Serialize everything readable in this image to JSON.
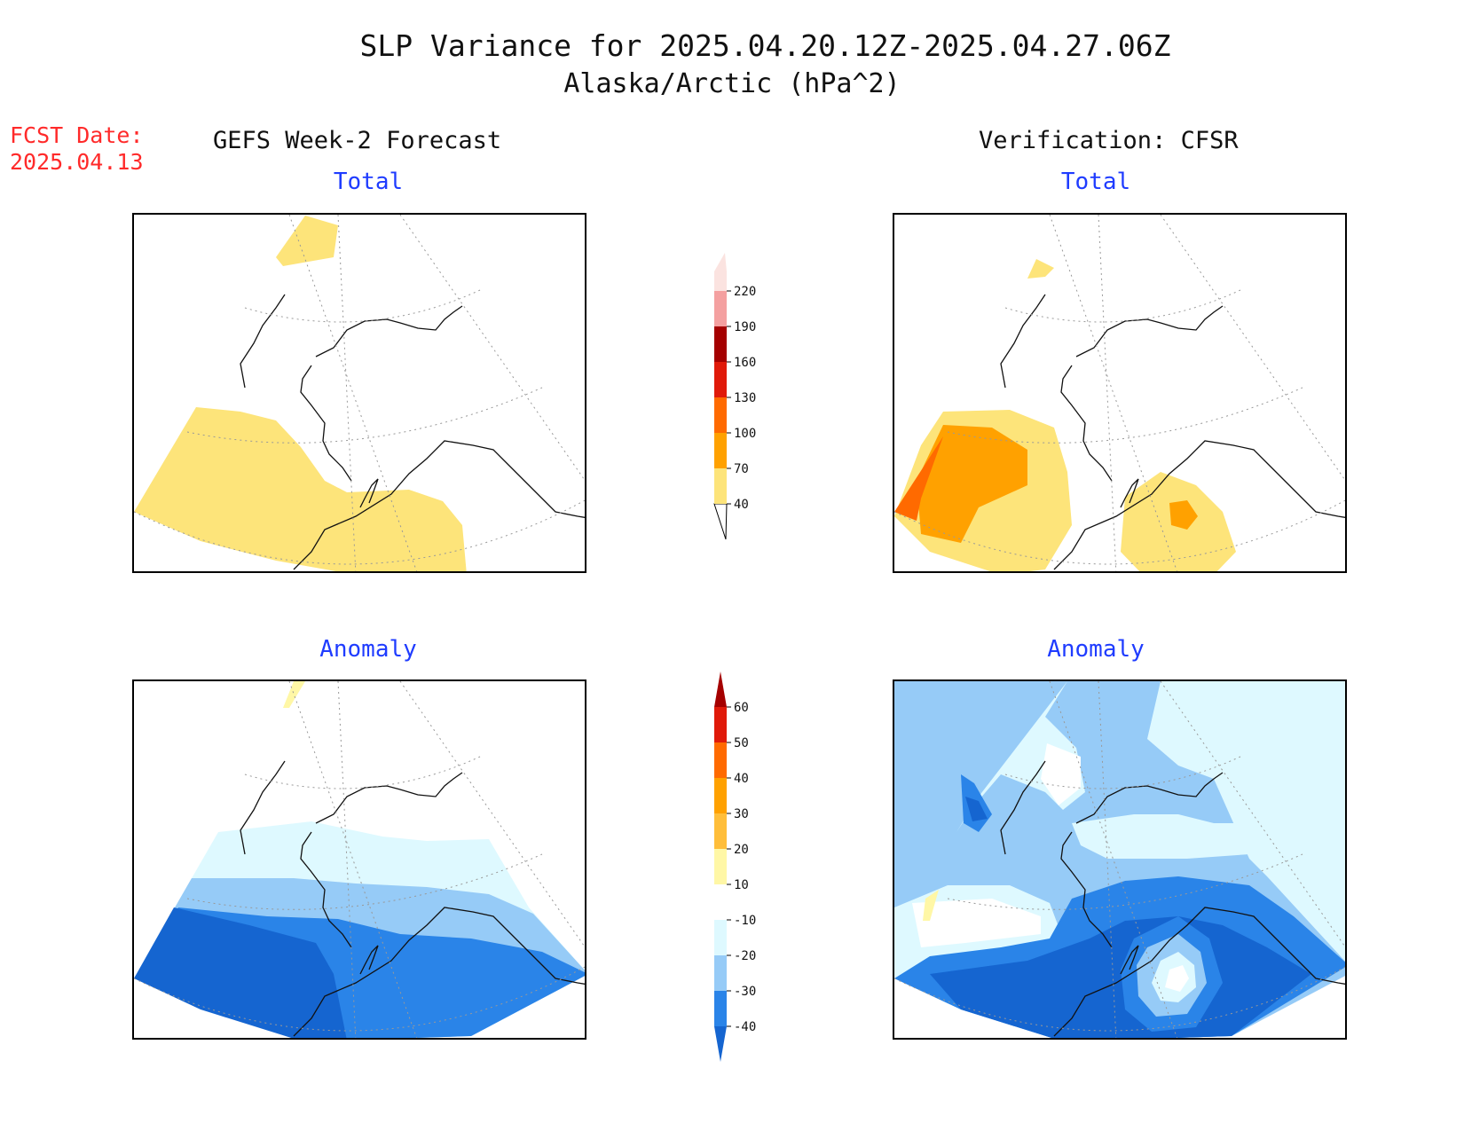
{
  "title": "SLP Variance for 2025.04.20.12Z-2025.04.27.06Z",
  "subtitle": "Alaska/Arctic (hPa^2)",
  "fcst_date": {
    "label": "FCST Date:",
    "value": "2025.04.13"
  },
  "columns": {
    "left": "GEFS Week-2 Forecast",
    "right": "Verification: CFSR"
  },
  "panels": {
    "forecast_total": "Total",
    "verify_total": "Total",
    "forecast_anomaly": "Anomaly",
    "verify_anomaly": "Anomaly"
  },
  "total_colorbar": {
    "levels": [
      "40",
      "70",
      "100",
      "130",
      "160",
      "190",
      "220"
    ],
    "colors": [
      "#fde47a",
      "#ffa100",
      "#ff6a00",
      "#e01a0a",
      "#a50000",
      "#f4a0a0",
      "#fbe3e0"
    ]
  },
  "anomaly_colorbar": {
    "levels": [
      "-40",
      "-30",
      "-20",
      "-10",
      "10",
      "20",
      "30",
      "40",
      "50",
      "60"
    ],
    "colors": [
      "#1565d0",
      "#2a84e8",
      "#96cbf7",
      "#def9ff",
      "#ffffff",
      "#fff7a6",
      "#ffbe3a",
      "#ffa100",
      "#ff6a00",
      "#e01a0a",
      "#a50000"
    ]
  }
}
